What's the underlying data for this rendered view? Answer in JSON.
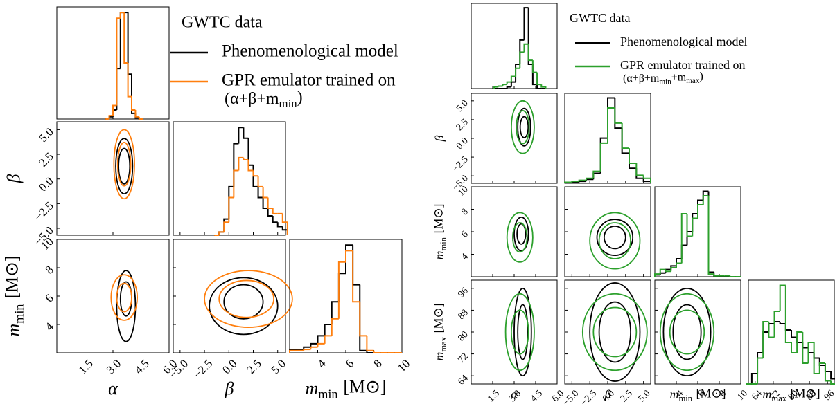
{
  "chart_data": [
    {
      "type": "corner",
      "legend_title": "GWTC data",
      "series": [
        {
          "name": "Phenomenological model",
          "color": "#000000",
          "histograms": [
            {
              "bins": [
                2.6,
                2.8,
                3.0,
                3.2,
                3.4,
                3.6,
                3.8,
                4.0,
                4.2,
                4.4,
                4.6
              ],
              "counts": [
                0,
                2,
                8,
                45,
                95,
                95,
                40,
                5,
                1,
                0
              ]
            },
            {
              "bins": [
                -1.5,
                -1,
                -0.5,
                0,
                0.5,
                1,
                1.5,
                2,
                2.5,
                3,
                3.5,
                4,
                4.5,
                5,
                5.5,
                6
              ],
              "counts": [
                0,
                3,
                15,
                45,
                85,
                100,
                90,
                65,
                45,
                35,
                25,
                18,
                12,
                8,
                5
              ]
            },
            {
              "bins": [
                2,
                2.5,
                3,
                3.5,
                4,
                4.5,
                5,
                5.5,
                6,
                6.5,
                7,
                7.5,
                8,
                8.5,
                9,
                9.5,
                10
              ],
              "counts": [
                3,
                3,
                5,
                8,
                15,
                25,
                45,
                70,
                95,
                60,
                2,
                0,
                0,
                0,
                0,
                0
              ]
            }
          ],
          "contours": [
            [
              {
                "cx": 3.6,
                "cy": 1.3,
                "rx": 0.45,
                "ry": 2.8
              },
              {
                "cx": 3.6,
                "cy": 1.3,
                "rx": 0.3,
                "ry": 1.8
              }
            ],
            [
              {
                "cx": 3.7,
                "cy": 5.3,
                "rx": 0.5,
                "ry": 2.5
              },
              {
                "cx": 3.7,
                "cy": 5.8,
                "rx": 0.3,
                "ry": 1.2
              }
            ],
            [
              {
                "cx": 1.5,
                "cy": 5.3,
                "rx": 3.5,
                "ry": 2
              },
              {
                "cx": 1.5,
                "cy": 5.6,
                "rx": 2,
                "ry": 1.2
              }
            ]
          ]
        },
        {
          "name": "GPR emulator trained on",
          "color": "#ff7f0e",
          "name_line2": [
            {
              "text": "(α+β+m"
            },
            {
              "sub": "min"
            },
            {
              "text": ")"
            }
          ],
          "histograms": [
            {
              "bins": [
                2.6,
                2.8,
                3.0,
                3.2,
                3.4,
                3.6,
                3.8,
                4.0,
                4.2,
                4.4,
                4.6
              ],
              "counts": [
                0,
                3,
                12,
                90,
                95,
                50,
                20,
                8,
                2,
                0
              ]
            },
            {
              "bins": [
                -1.5,
                -1,
                -0.5,
                0,
                0.5,
                1,
                1.5,
                2,
                2.5,
                3,
                3.5,
                4,
                4.5,
                5,
                5.5,
                6
              ],
              "counts": [
                0,
                3,
                12,
                35,
                60,
                72,
                70,
                60,
                55,
                45,
                35,
                25,
                20,
                20,
                12
              ]
            },
            {
              "bins": [
                2,
                2.5,
                3,
                3.5,
                4,
                4.5,
                5,
                5.5,
                6,
                6.5,
                7,
                7.5,
                8,
                8.5,
                9,
                9.5,
                10
              ],
              "counts": [
                2,
                2,
                3,
                5,
                8,
                15,
                30,
                80,
                90,
                45,
                15,
                2,
                0,
                0,
                0,
                0
              ]
            }
          ],
          "contours": [
            [
              {
                "cx": 3.6,
                "cy": 1.5,
                "rx": 0.55,
                "ry": 3.5
              },
              {
                "cx": 3.6,
                "cy": 1.5,
                "rx": 0.35,
                "ry": 2.2
              }
            ],
            [
              {
                "cx": 3.6,
                "cy": 5.9,
                "rx": 0.7,
                "ry": 1.6
              },
              {
                "cx": 3.6,
                "cy": 5.9,
                "rx": 0.4,
                "ry": 1
              }
            ],
            [
              {
                "cx": 2,
                "cy": 5.8,
                "rx": 4.5,
                "ry": 2
              },
              {
                "cx": 1.8,
                "cy": 5.8,
                "rx": 2.8,
                "ry": 1.3
              }
            ]
          ]
        }
      ],
      "params": [
        {
          "symbol": "α",
          "lim": [
            0,
            6
          ],
          "ticks": [
            1.5,
            {
              "value": 3,
              "label": "3.0"
            },
            4.5,
            {
              "value": 6,
              "label": "6.0"
            }
          ]
        },
        {
          "symbol": "β",
          "lim": [
            -5.7,
            5.8
          ],
          "ticks": [
            {
              "value": -5,
              "label": "−5.0"
            },
            {
              "value": -2.5,
              "label": "−2.5"
            },
            {
              "value": 0,
              "label": "0.0"
            },
            2.5,
            {
              "value": 5,
              "label": "5.0"
            }
          ]
        },
        {
          "symbol": "m",
          "sub": "min",
          "unit": "[M⊙]",
          "lim": [
            2,
            10
          ],
          "ticks": [
            4,
            6,
            8,
            10
          ]
        }
      ]
    },
    {
      "type": "corner",
      "legend_title": "GWTC data",
      "series": [
        {
          "name": "Phenomenological model",
          "color": "#000000",
          "histograms": [
            {
              "bins": [
                1.6,
                1.9,
                2.2,
                2.5,
                2.8,
                3.1,
                3.4,
                3.7,
                4.0,
                4.3,
                4.6,
                4.9,
                5.2
              ],
              "counts": [
                0,
                0,
                0,
                2,
                8,
                30,
                60,
                100,
                30,
                5,
                0,
                0
              ]
            },
            {
              "bins": [
                -6,
                -5,
                -4,
                -3,
                -2,
                -1,
                0,
                1,
                2,
                3,
                4,
                5,
                6
              ],
              "counts": [
                1,
                1,
                2,
                4,
                10,
                45,
                85,
                55,
                30,
                15,
                5,
                2
              ]
            },
            {
              "bins": [
                2,
                2.5,
                3,
                3.5,
                4,
                4.5,
                5,
                5.5,
                6,
                6.5,
                7,
                7.5,
                8,
                8.5,
                9,
                9.5,
                10
              ],
              "counts": [
                2,
                4,
                8,
                12,
                20,
                35,
                50,
                70,
                85,
                95,
                5,
                0,
                0,
                0,
                0,
                0
              ]
            },
            {
              "bins": [
                60,
                62.5,
                65,
                67.5,
                70,
                72.5,
                75,
                77.5,
                80,
                82.5,
                85,
                87.5,
                90,
                92.5,
                95,
                97.5,
                100
              ],
              "counts": [
                0,
                10,
                30,
                50,
                58,
                60,
                58,
                52,
                45,
                40,
                35,
                30,
                25,
                18,
                12,
                5
              ]
            }
          ],
          "contours": [
            [
              {
                "cx": 3.7,
                "cy": 1.5,
                "rx": 0.45,
                "ry": 2.5
              },
              {
                "cx": 3.7,
                "cy": 1.5,
                "rx": 0.28,
                "ry": 1.4
              }
            ],
            [
              {
                "cx": 3.5,
                "cy": 5.8,
                "rx": 0.5,
                "ry": 1.5
              },
              {
                "cx": 3.5,
                "cy": 5.8,
                "rx": 0.3,
                "ry": 0.9
              }
            ],
            [
              {
                "cx": 1,
                "cy": 5.5,
                "rx": 2.5,
                "ry": 1.6
              },
              {
                "cx": 1,
                "cy": 5.5,
                "rx": 1.5,
                "ry": 1
              }
            ],
            [
              {
                "cx": 3.6,
                "cy": 80,
                "rx": 0.6,
                "ry": 16
              },
              {
                "cx": 3.6,
                "cy": 80,
                "rx": 0.35,
                "ry": 10
              }
            ],
            [
              {
                "cx": 1,
                "cy": 80,
                "rx": 3.5,
                "ry": 18
              },
              {
                "cx": 1,
                "cy": 80,
                "rx": 2.2,
                "ry": 11
              }
            ],
            [
              {
                "cx": 5,
                "cy": 80,
                "rx": 2.2,
                "ry": 16
              },
              {
                "cx": 5,
                "cy": 80,
                "rx": 1.3,
                "ry": 10
              }
            ]
          ]
        },
        {
          "name": "GPR emulator trained on",
          "color": "#2ca02c",
          "name_line2": [
            {
              "text": "(α+β+m"
            },
            {
              "sub": "min"
            },
            {
              "text": "+m"
            },
            {
              "sub": "max"
            },
            {
              "text": ")"
            }
          ],
          "histograms": [
            {
              "bins": [
                1.6,
                1.9,
                2.2,
                2.5,
                2.8,
                3.1,
                3.4,
                3.7,
                4.0,
                4.3,
                4.6,
                4.9,
                5.2
              ],
              "counts": [
                2,
                3,
                5,
                8,
                15,
                25,
                45,
                55,
                35,
                20,
                5,
                2
              ]
            },
            {
              "bins": [
                -6,
                -5,
                -4,
                -3,
                -2,
                -1,
                0,
                1,
                2,
                3,
                4,
                5,
                6
              ],
              "counts": [
                1,
                2,
                3,
                5,
                12,
                40,
                75,
                60,
                35,
                20,
                8,
                5
              ]
            },
            {
              "bins": [
                2,
                2.5,
                3,
                3.5,
                4,
                4.5,
                5,
                5.5,
                6,
                6.5,
                7,
                7.5,
                8,
                8.5,
                9,
                9.5,
                10
              ],
              "counts": [
                3,
                8,
                6,
                10,
                15,
                70,
                45,
                65,
                80,
                90,
                3,
                1,
                1,
                1,
                0,
                0
              ]
            },
            {
              "bins": [
                60,
                62.5,
                65,
                67.5,
                70,
                72.5,
                75,
                77.5,
                80,
                82.5,
                85,
                87.5,
                90,
                92.5,
                95,
                97.5,
                100
              ],
              "counts": [
                0,
                0,
                25,
                60,
                45,
                70,
                95,
                40,
                30,
                50,
                20,
                40,
                10,
                20,
                3,
                0
              ]
            }
          ],
          "contours": [
            [
              {
                "cx": 3.6,
                "cy": 1.5,
                "rx": 0.8,
                "ry": 3.5
              },
              {
                "cx": 3.6,
                "cy": 1.5,
                "rx": 0.45,
                "ry": 2.2
              }
            ],
            [
              {
                "cx": 3.4,
                "cy": 5.5,
                "rx": 0.9,
                "ry": 2.2
              },
              {
                "cx": 3.4,
                "cy": 5.5,
                "rx": 0.5,
                "ry": 1.3
              }
            ],
            [
              {
                "cx": 1,
                "cy": 5.2,
                "rx": 3.5,
                "ry": 2.5
              },
              {
                "cx": 1,
                "cy": 5.2,
                "rx": 2.2,
                "ry": 1.6
              }
            ],
            [
              {
                "cx": 3.4,
                "cy": 80,
                "rx": 1,
                "ry": 14
              },
              {
                "cx": 3.4,
                "cy": 80,
                "rx": 0.6,
                "ry": 8
              }
            ],
            [
              {
                "cx": 1,
                "cy": 80,
                "rx": 4.5,
                "ry": 14
              },
              {
                "cx": 1,
                "cy": 80,
                "rx": 3,
                "ry": 9
              }
            ],
            [
              {
                "cx": 5,
                "cy": 80,
                "rx": 2.5,
                "ry": 14
              },
              {
                "cx": 5,
                "cy": 80,
                "rx": 1.6,
                "ry": 8
              }
            ]
          ]
        }
      ],
      "params": [
        {
          "symbol": "α",
          "lim": [
            0,
            6
          ],
          "ticks": [
            1.5,
            {
              "value": 3,
              "label": "3.0"
            },
            4.5,
            {
              "value": 6,
              "label": "6.0"
            }
          ]
        },
        {
          "symbol": "β",
          "lim": [
            -6,
            6
          ],
          "ticks": [
            {
              "value": -5,
              "label": "−5.0"
            },
            {
              "value": -2.5,
              "label": "−2.5"
            },
            {
              "value": 0,
              "label": "0.0"
            },
            2.5,
            {
              "value": 5,
              "label": "5.0"
            }
          ]
        },
        {
          "symbol": "m",
          "sub": "min",
          "unit": "[M⊙]",
          "lim": [
            2,
            10
          ],
          "ticks": [
            4,
            6,
            8,
            10
          ]
        },
        {
          "symbol": "m",
          "sub": "max",
          "unit": "[M⊙]",
          "lim": [
            61,
            99
          ],
          "ticks": [
            64,
            72,
            80,
            88,
            96
          ]
        }
      ]
    }
  ]
}
